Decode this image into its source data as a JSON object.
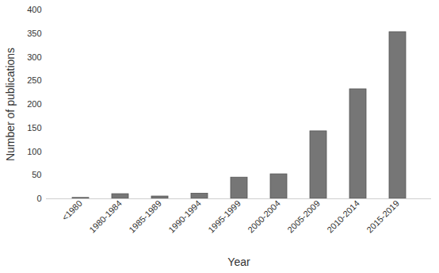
{
  "chart_data": {
    "type": "bar",
    "x_label": "Year",
    "y_label": "Number of publications",
    "categories": [
      "<1980",
      "1980-1984",
      "1985-1989",
      "1990-1994",
      "1995-1999",
      "2000-2004",
      "2005-2009",
      "2010-2014",
      "2015-2019"
    ],
    "values": [
      2,
      10,
      5,
      11,
      45,
      52,
      143,
      232,
      353
    ],
    "color": "#767676",
    "ylim": [
      0,
      400
    ],
    "yticks": [
      0,
      50,
      100,
      150,
      200,
      250,
      300,
      350,
      400
    ],
    "grid": false
  }
}
